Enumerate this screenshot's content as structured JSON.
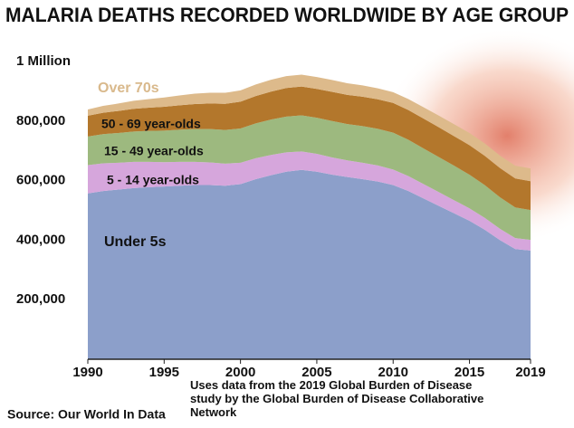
{
  "chart_data": {
    "type": "stacked_area",
    "title": "MALARIA DEATHS RECORDED WORLDWIDE BY AGE GROUP",
    "source": "Source: Our World In Data",
    "note": "Uses data from the 2019 Global Burden of Disease study by the Global Burden of Disease Collaborative Network",
    "x": [
      1990,
      1991,
      1992,
      1993,
      1994,
      1995,
      1996,
      1997,
      1998,
      1999,
      2000,
      2001,
      2002,
      2003,
      2004,
      2005,
      2006,
      2007,
      2008,
      2009,
      2010,
      2011,
      2012,
      2013,
      2014,
      2015,
      2016,
      2017,
      2018,
      2019
    ],
    "xlim": [
      1990,
      2019
    ],
    "xticks": [
      1990,
      1995,
      2000,
      2005,
      2010,
      2015,
      2019
    ],
    "ylim": [
      0,
      1000000
    ],
    "yticks": [
      {
        "value": 200000,
        "label": "200,000"
      },
      {
        "value": 400000,
        "label": "400,000"
      },
      {
        "value": 600000,
        "label": "600,000"
      },
      {
        "value": 800000,
        "label": "800,000"
      },
      {
        "value": 1000000,
        "label": "1 Million"
      }
    ],
    "series": [
      {
        "name": "Under 5s",
        "color": "#8c9fca",
        "values": [
          557000,
          565000,
          570000,
          575000,
          578000,
          580000,
          583000,
          585000,
          585000,
          583000,
          588000,
          605000,
          618000,
          630000,
          636000,
          630000,
          620000,
          612000,
          605000,
          597000,
          585000,
          565000,
          540000,
          515000,
          490000,
          465000,
          435000,
          400000,
          370000,
          365000
        ]
      },
      {
        "name": "5 - 14 year-olds",
        "color": "#d6a6dc",
        "values": [
          95000,
          93000,
          90000,
          88000,
          85000,
          82000,
          80000,
          78000,
          76000,
          74000,
          72000,
          70000,
          68000,
          65000,
          62000,
          60000,
          58000,
          56000,
          55000,
          54000,
          52000,
          50000,
          48000,
          46000,
          44000,
          42000,
          40000,
          38000,
          37000,
          36000
        ]
      },
      {
        "name": "15 - 49 year-olds",
        "color": "#9db97f",
        "values": [
          96000,
          98000,
          100000,
          102000,
          104000,
          106000,
          108000,
          110000,
          112000,
          113000,
          115000,
          117000,
          119000,
          120000,
          121000,
          121000,
          122000,
          122000,
          123000,
          123000,
          124000,
          122000,
          120000,
          118000,
          116000,
          113000,
          110000,
          106000,
          103000,
          100000
        ]
      },
      {
        "name": "50 - 69 year-olds",
        "color": "#b3772c",
        "values": [
          70000,
          72000,
          74000,
          76000,
          78000,
          80000,
          82000,
          84000,
          86000,
          88000,
          90000,
          92000,
          94000,
          96000,
          97000,
          97000,
          98000,
          98000,
          99000,
          99000,
          100000,
          100000,
          100000,
          100000,
          99000,
          99000,
          98000,
          98000,
          97000,
          97000
        ]
      },
      {
        "name": "Over 70s",
        "color": "#ddba8b",
        "values": [
          21000,
          23000,
          25000,
          27000,
          29000,
          31000,
          33000,
          35000,
          36000,
          37000,
          38000,
          39000,
          40000,
          40000,
          40000,
          40000,
          40000,
          39000,
          38000,
          37000,
          36000,
          37000,
          38000,
          39000,
          40000,
          41000,
          42000,
          42000,
          43000,
          43000
        ]
      }
    ]
  }
}
